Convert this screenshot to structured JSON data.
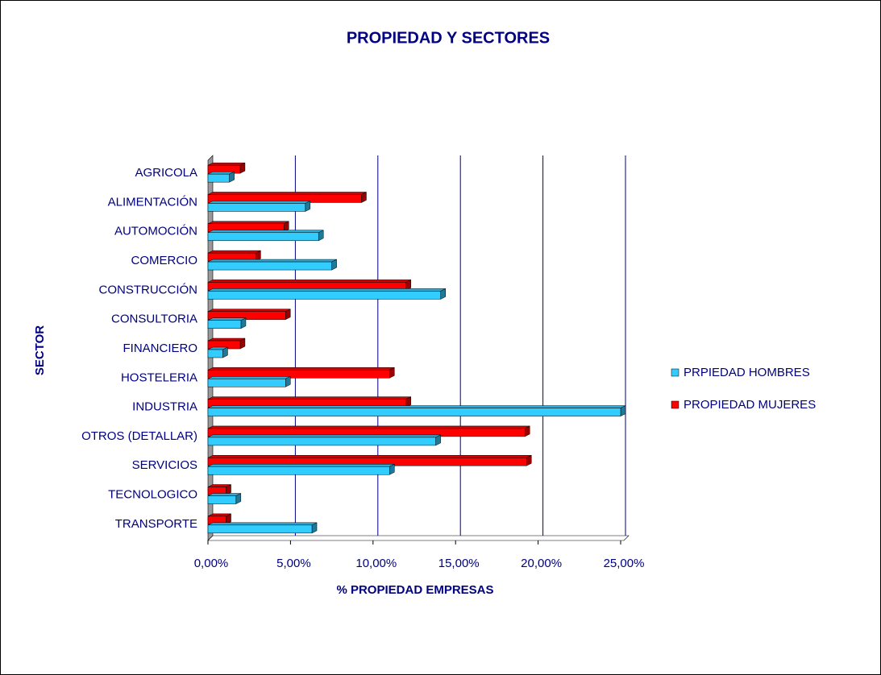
{
  "chart_data": {
    "type": "bar",
    "orientation": "horizontal",
    "title": "PROPIEDAD Y SECTORES",
    "xlabel": "% PROPIEDAD EMPRESAS",
    "ylabel": "SECTOR",
    "categories": [
      "AGRICOLA",
      "ALIMENTACIÓN",
      "AUTOMOCIÓN",
      "COMERCIO",
      "CONSTRUCCIÓN",
      "CONSULTORIA",
      "FINANCIERO",
      "HOSTELERIA",
      "INDUSTRIA",
      "OTROS (DETALLAR)",
      "SERVICIOS",
      "TECNOLOGICO",
      "TRANSPORTE"
    ],
    "series": [
      {
        "name": "PRPIEDAD HOMBRES",
        "color": "#33ccff",
        "values": [
          1.3,
          5.9,
          6.7,
          7.5,
          14.1,
          2.0,
          0.9,
          4.7,
          25.0,
          13.8,
          11.0,
          1.7,
          6.3
        ]
      },
      {
        "name": "PROPIEDAD MUJERES",
        "color": "#ff0000",
        "values": [
          1.95,
          9.3,
          4.6,
          2.9,
          12.0,
          4.7,
          1.95,
          11.0,
          12.0,
          19.2,
          19.3,
          1.1,
          1.1
        ]
      }
    ],
    "xlim": [
      0,
      25
    ],
    "xticks": [
      {
        "value": 0,
        "label": "0,00%"
      },
      {
        "value": 5,
        "label": "5,00%"
      },
      {
        "value": 10,
        "label": "10,00%"
      },
      {
        "value": 15,
        "label": "15,00%"
      },
      {
        "value": 20,
        "label": "20,00%"
      },
      {
        "value": 25,
        "label": "25,00%"
      }
    ],
    "grid": true,
    "legend": "right"
  }
}
